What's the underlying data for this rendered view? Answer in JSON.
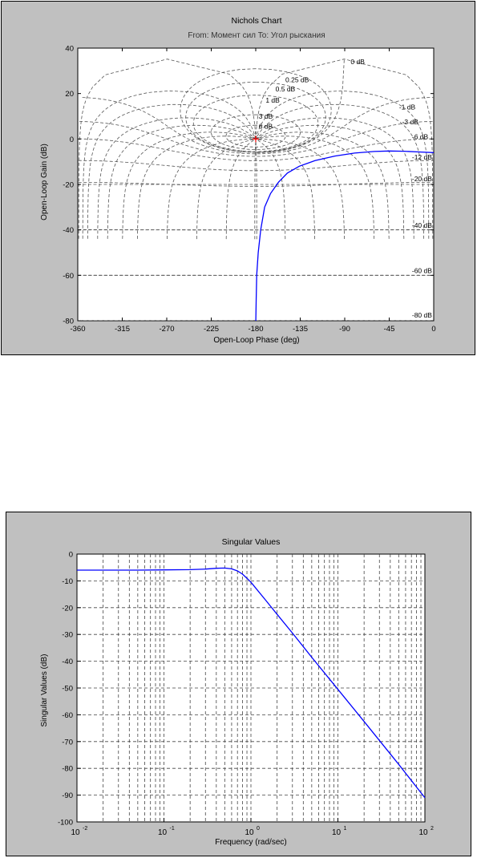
{
  "nichols": {
    "chart_data": {
      "type": "line",
      "title": "Nichols Chart",
      "subtitle": "From:  Момент сил  To: Угол рыскания",
      "xlabel": "Open-Loop Phase (deg)",
      "ylabel": "Open-Loop Gain (dB)",
      "xlim": [
        -360,
        0
      ],
      "ylim": [
        -80,
        40
      ],
      "xticks": [
        "-360",
        "-315",
        "-270",
        "-225",
        "-180",
        "-135",
        "-90",
        "-45",
        "0"
      ],
      "yticks": [
        "-80",
        "-60",
        "-40",
        "-20",
        "0",
        "20",
        "40"
      ],
      "grid": true,
      "grid_labels": [
        "0 dB",
        "0.25 dB",
        "0.5 dB",
        "1 dB",
        "3 dB",
        "6 dB",
        "-1 dB",
        "-3 dB",
        "-6 dB",
        "-12 dB",
        "-20 dB",
        "-40 dB",
        "-60 dB",
        "-80 dB"
      ],
      "critical_point": {
        "x": -180,
        "y": 0
      },
      "series": [
        {
          "color": "#0000ff",
          "points": [
            [
              -179.9,
              -80
            ],
            [
              -179.5,
              -70
            ],
            [
              -179,
              -60
            ],
            [
              -177.5,
              -50
            ],
            [
              -175,
              -40
            ],
            [
              -171,
              -30
            ],
            [
              -165,
              -24
            ],
            [
              -157,
              -19
            ],
            [
              -148,
              -15
            ],
            [
              -136,
              -12
            ],
            [
              -120,
              -9.5
            ],
            [
              -100,
              -7.5
            ],
            [
              -80,
              -6.2
            ],
            [
              -60,
              -5.5
            ],
            [
              -45,
              -5.3
            ],
            [
              -30,
              -5.4
            ],
            [
              -15,
              -5.7
            ],
            [
              0,
              -6
            ]
          ]
        }
      ]
    }
  },
  "singular": {
    "chart_data": {
      "type": "line",
      "title": "Singular Values",
      "xlabel": "Frequency (rad/sec)",
      "ylabel": "Singular Values (dB)",
      "xscale": "log",
      "xlim": [
        0.01,
        100
      ],
      "ylim": [
        -100,
        0
      ],
      "xticks": [
        {
          "base": "10",
          "exp": "-2"
        },
        {
          "base": "10",
          "exp": "-1"
        },
        {
          "base": "10",
          "exp": "0"
        },
        {
          "base": "10",
          "exp": "1"
        },
        {
          "base": "10",
          "exp": "2"
        }
      ],
      "yticks": [
        "-100",
        "-90",
        "-80",
        "-70",
        "-60",
        "-50",
        "-40",
        "-30",
        "-20",
        "-10",
        "0"
      ],
      "grid": true,
      "series": [
        {
          "color": "#0000ff",
          "x": [
            0.01,
            0.05,
            0.1,
            0.2,
            0.3,
            0.4,
            0.5,
            0.6,
            0.7,
            0.8,
            0.9,
            1.0,
            1.5,
            2,
            3,
            5,
            10,
            20,
            50,
            100
          ],
          "y": [
            -6,
            -6,
            -5.9,
            -5.8,
            -5.6,
            -5.3,
            -5.2,
            -5.5,
            -6.3,
            -7.5,
            -9,
            -10.5,
            -17.5,
            -22.5,
            -29.5,
            -38.5,
            -50.5,
            -62.5,
            -78.5,
            -91
          ]
        }
      ]
    }
  }
}
